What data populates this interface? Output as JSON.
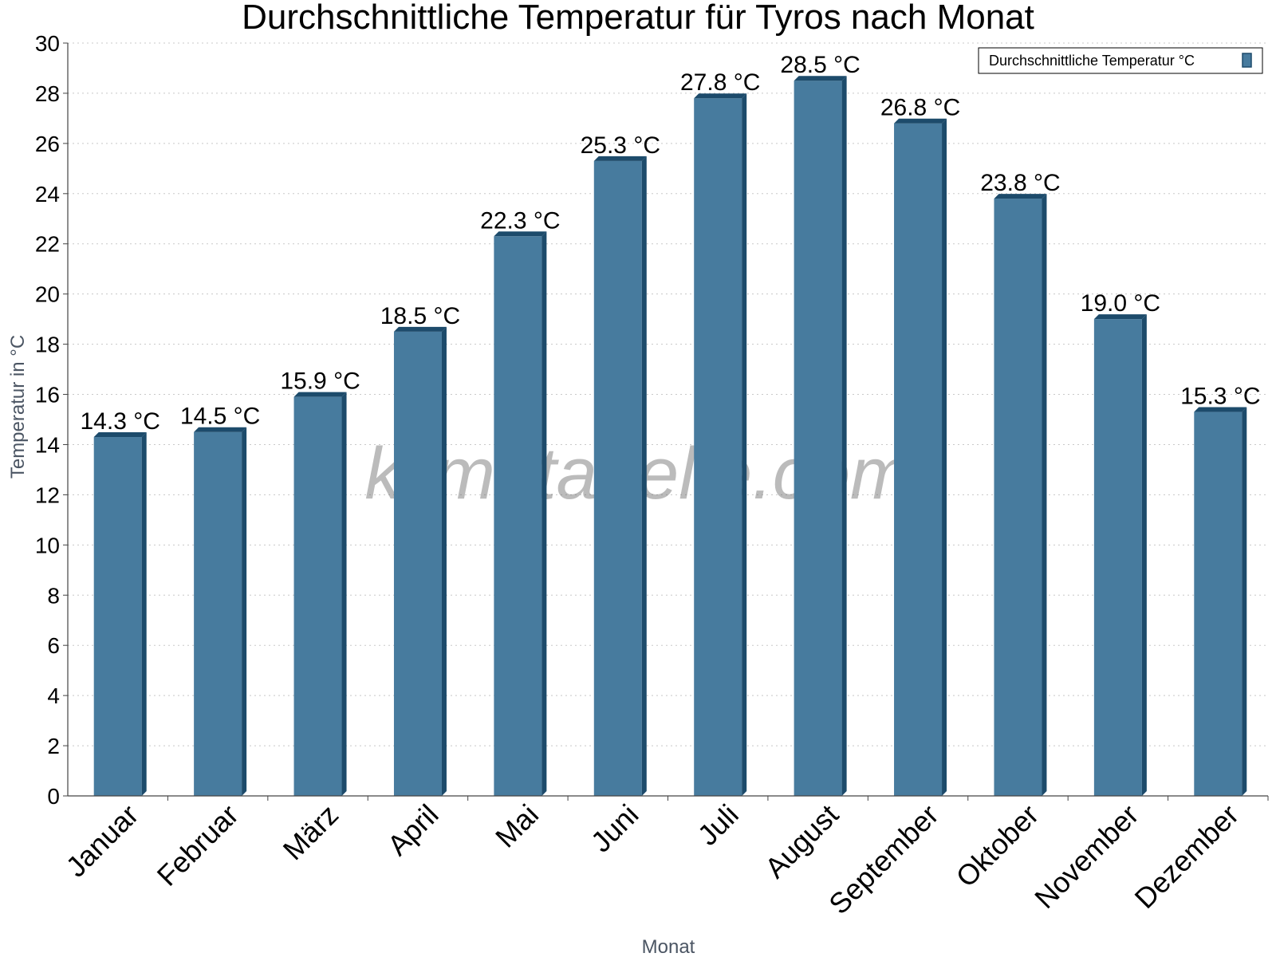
{
  "chart_data": {
    "type": "bar",
    "title": "Durchschnittliche Temperatur für Tyros nach Monat",
    "xlabel": "Monat",
    "ylabel": "Temperatur in °C",
    "categories": [
      "Januar",
      "Februar",
      "März",
      "April",
      "Mai",
      "Juni",
      "Juli",
      "August",
      "September",
      "Oktober",
      "November",
      "Dezember"
    ],
    "series": [
      {
        "name": "Durchschnittliche Temperatur °C",
        "values": [
          14.3,
          14.5,
          15.9,
          18.5,
          22.3,
          25.3,
          27.8,
          28.5,
          26.8,
          23.8,
          19.0,
          15.3
        ],
        "labels": [
          "14.3 °C",
          "14.5 °C",
          "15.9 °C",
          "18.5 °C",
          "22.3 °C",
          "25.3 °C",
          "27.8 °C",
          "28.5 °C",
          "26.8 °C",
          "23.8 °C",
          "19.0 °C",
          "15.3 °C"
        ],
        "color": "#477b9e",
        "edge_color": "#1d4b6b"
      }
    ],
    "ylim": [
      0,
      30
    ],
    "yticks": [
      "0",
      "2",
      "4",
      "6",
      "8",
      "10",
      "12",
      "14",
      "16",
      "18",
      "20",
      "22",
      "24",
      "26",
      "28",
      "30"
    ],
    "grid": true,
    "legend_position": "top-right",
    "watermark": "klimatabelle.com"
  }
}
